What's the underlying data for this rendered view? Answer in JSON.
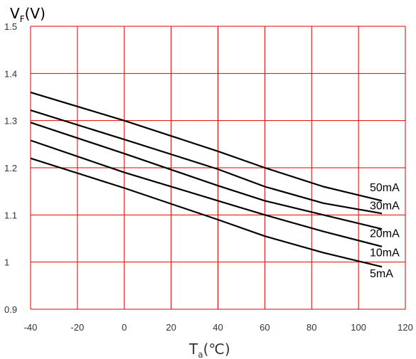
{
  "chart_data": {
    "type": "line",
    "title": "",
    "ylabel": {
      "main": "V",
      "sub": "F",
      "unit": "(V)"
    },
    "xlabel": {
      "main": "T",
      "sub": "a",
      "unit": "(℃)"
    },
    "xlim": [
      -40,
      120
    ],
    "ylim": [
      0.9,
      1.5
    ],
    "x_ticks": [
      -40,
      -20,
      0,
      20,
      40,
      60,
      80,
      100,
      120
    ],
    "y_ticks": [
      0.9,
      1.0,
      1.1,
      1.2,
      1.3,
      1.4,
      1.5
    ],
    "y_tick_labels": [
      "0.9",
      "1",
      "1.1",
      "1.2",
      "1.3",
      "1.4",
      "1.5"
    ],
    "x_tick_labels": [
      "-40",
      "-20",
      "0",
      "20",
      "40",
      "60",
      "80",
      "100",
      "120"
    ],
    "grid": true,
    "grid_color": "#e00000",
    "line_color": "#000000",
    "series": [
      {
        "name": "50mA",
        "x": [
          -40,
          0,
          40,
          60,
          85,
          110
        ],
        "y": [
          1.36,
          1.3,
          1.235,
          1.2,
          1.16,
          1.13
        ]
      },
      {
        "name": "30mA",
        "x": [
          -40,
          0,
          40,
          60,
          85,
          110
        ],
        "y": [
          1.322,
          1.26,
          1.197,
          1.16,
          1.125,
          1.103
        ]
      },
      {
        "name": "20mA",
        "x": [
          -40,
          0,
          40,
          60,
          85,
          110
        ],
        "y": [
          1.296,
          1.23,
          1.162,
          1.13,
          1.1,
          1.07
        ]
      },
      {
        "name": "10mA",
        "x": [
          -40,
          0,
          40,
          60,
          85,
          110
        ],
        "y": [
          1.258,
          1.19,
          1.13,
          1.1,
          1.065,
          1.033
        ]
      },
      {
        "name": "5mA",
        "x": [
          -40,
          0,
          40,
          60,
          85,
          110
        ],
        "y": [
          1.22,
          1.157,
          1.09,
          1.055,
          1.02,
          0.99
        ]
      }
    ],
    "series_label_y": [
      1.15,
      1.112,
      1.053,
      1.012,
      0.968
    ]
  }
}
